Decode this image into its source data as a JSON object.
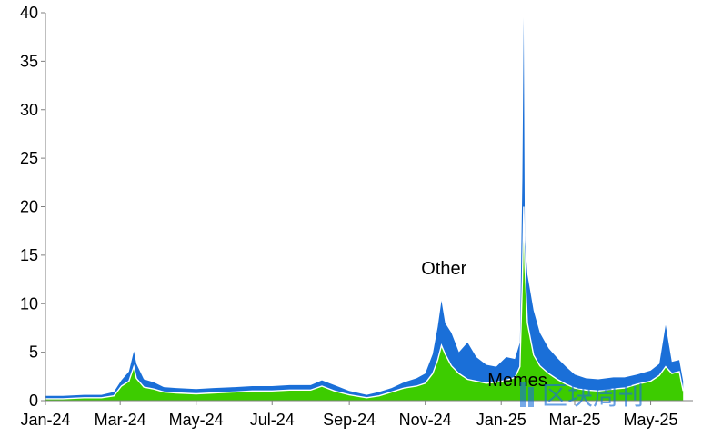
{
  "chart_data": {
    "type": "area",
    "stacked": true,
    "title": "",
    "xlabel": "",
    "ylabel": "",
    "ylim": [
      0,
      40
    ],
    "yticks": [
      0,
      5,
      10,
      15,
      20,
      25,
      30,
      35,
      40
    ],
    "xlim": [
      "2024-01-01",
      "2025-06-01"
    ],
    "xticks": [
      {
        "date": "2024-01-01",
        "label": "Jan-24"
      },
      {
        "date": "2024-03-01",
        "label": "Mar-24"
      },
      {
        "date": "2024-05-01",
        "label": "May-24"
      },
      {
        "date": "2024-07-01",
        "label": "Jul-24"
      },
      {
        "date": "2024-09-01",
        "label": "Sep-24"
      },
      {
        "date": "2024-11-01",
        "label": "Nov-24"
      },
      {
        "date": "2025-01-01",
        "label": "Jan-25"
      },
      {
        "date": "2025-03-01",
        "label": "Mar-25"
      },
      {
        "date": "2025-05-01",
        "label": "May-25"
      }
    ],
    "grid": false,
    "legend": "none",
    "series": [
      {
        "name": "Memes",
        "color": "#3dcc00",
        "points": [
          [
            "2024-01-01",
            0.2
          ],
          [
            "2024-01-15",
            0.2
          ],
          [
            "2024-02-01",
            0.3
          ],
          [
            "2024-02-15",
            0.3
          ],
          [
            "2024-02-25",
            0.5
          ],
          [
            "2024-03-02",
            1.5
          ],
          [
            "2024-03-08",
            2.0
          ],
          [
            "2024-03-12",
            3.5
          ],
          [
            "2024-03-14",
            2.3
          ],
          [
            "2024-03-20",
            1.4
          ],
          [
            "2024-03-28",
            1.2
          ],
          [
            "2024-04-05",
            0.9
          ],
          [
            "2024-04-15",
            0.8
          ],
          [
            "2024-05-01",
            0.7
          ],
          [
            "2024-05-15",
            0.8
          ],
          [
            "2024-06-01",
            0.9
          ],
          [
            "2024-06-15",
            1.0
          ],
          [
            "2024-07-01",
            1.0
          ],
          [
            "2024-07-15",
            1.1
          ],
          [
            "2024-08-01",
            1.1
          ],
          [
            "2024-08-10",
            1.5
          ],
          [
            "2024-08-20",
            1.0
          ],
          [
            "2024-09-01",
            0.6
          ],
          [
            "2024-09-15",
            0.3
          ],
          [
            "2024-09-25",
            0.5
          ],
          [
            "2024-10-05",
            0.9
          ],
          [
            "2024-10-15",
            1.3
          ],
          [
            "2024-10-25",
            1.5
          ],
          [
            "2024-11-01",
            1.8
          ],
          [
            "2024-11-07",
            2.8
          ],
          [
            "2024-11-11",
            4.2
          ],
          [
            "2024-11-14",
            5.7
          ],
          [
            "2024-11-17",
            4.8
          ],
          [
            "2024-11-22",
            3.6
          ],
          [
            "2024-11-28",
            2.8
          ],
          [
            "2024-12-05",
            2.2
          ],
          [
            "2024-12-12",
            2.0
          ],
          [
            "2024-12-20",
            1.8
          ],
          [
            "2024-12-28",
            1.9
          ],
          [
            "2025-01-05",
            2.1
          ],
          [
            "2025-01-12",
            2.4
          ],
          [
            "2025-01-16",
            3.5
          ],
          [
            "2025-01-18",
            12.5
          ],
          [
            "2025-01-19",
            20.0
          ],
          [
            "2025-01-20",
            14.0
          ],
          [
            "2025-01-22",
            8.0
          ],
          [
            "2025-01-27",
            4.7
          ],
          [
            "2025-02-01",
            3.6
          ],
          [
            "2025-02-08",
            2.8
          ],
          [
            "2025-02-15",
            2.2
          ],
          [
            "2025-02-22",
            1.7
          ],
          [
            "2025-03-01",
            1.3
          ],
          [
            "2025-03-10",
            1.1
          ],
          [
            "2025-03-20",
            1.0
          ],
          [
            "2025-04-01",
            1.2
          ],
          [
            "2025-04-10",
            1.3
          ],
          [
            "2025-04-20",
            1.7
          ],
          [
            "2025-05-01",
            2.0
          ],
          [
            "2025-05-08",
            2.6
          ],
          [
            "2025-05-13",
            3.5
          ],
          [
            "2025-05-18",
            2.8
          ],
          [
            "2025-05-24",
            3.0
          ],
          [
            "2025-05-27",
            1.0
          ]
        ]
      },
      {
        "name": "Other",
        "color": "#1a6fd8",
        "points": [
          [
            "2024-01-01",
            0.3
          ],
          [
            "2024-01-15",
            0.3
          ],
          [
            "2024-02-01",
            0.3
          ],
          [
            "2024-02-15",
            0.3
          ],
          [
            "2024-02-25",
            0.4
          ],
          [
            "2024-03-02",
            0.6
          ],
          [
            "2024-03-08",
            1.0
          ],
          [
            "2024-03-12",
            1.6
          ],
          [
            "2024-03-14",
            1.5
          ],
          [
            "2024-03-20",
            0.8
          ],
          [
            "2024-03-28",
            0.7
          ],
          [
            "2024-04-05",
            0.5
          ],
          [
            "2024-04-15",
            0.5
          ],
          [
            "2024-05-01",
            0.5
          ],
          [
            "2024-05-15",
            0.5
          ],
          [
            "2024-06-01",
            0.5
          ],
          [
            "2024-06-15",
            0.5
          ],
          [
            "2024-07-01",
            0.5
          ],
          [
            "2024-07-15",
            0.5
          ],
          [
            "2024-08-01",
            0.5
          ],
          [
            "2024-08-10",
            0.6
          ],
          [
            "2024-08-20",
            0.6
          ],
          [
            "2024-09-01",
            0.4
          ],
          [
            "2024-09-15",
            0.3
          ],
          [
            "2024-09-25",
            0.4
          ],
          [
            "2024-10-05",
            0.4
          ],
          [
            "2024-10-15",
            0.6
          ],
          [
            "2024-10-25",
            0.8
          ],
          [
            "2024-11-01",
            1.0
          ],
          [
            "2024-11-07",
            2.0
          ],
          [
            "2024-11-11",
            3.4
          ],
          [
            "2024-11-14",
            4.6
          ],
          [
            "2024-11-17",
            3.2
          ],
          [
            "2024-11-22",
            3.4
          ],
          [
            "2024-11-28",
            2.2
          ],
          [
            "2024-12-05",
            3.8
          ],
          [
            "2024-12-12",
            2.5
          ],
          [
            "2024-12-20",
            1.9
          ],
          [
            "2024-12-28",
            1.6
          ],
          [
            "2025-01-05",
            2.4
          ],
          [
            "2025-01-12",
            1.9
          ],
          [
            "2025-01-16",
            2.5
          ],
          [
            "2025-01-18",
            10.5
          ],
          [
            "2025-01-19",
            19.5
          ],
          [
            "2025-01-20",
            3.0
          ],
          [
            "2025-01-22",
            5.0
          ],
          [
            "2025-01-27",
            4.6
          ],
          [
            "2025-02-01",
            3.4
          ],
          [
            "2025-02-08",
            2.6
          ],
          [
            "2025-02-15",
            2.2
          ],
          [
            "2025-02-22",
            1.8
          ],
          [
            "2025-03-01",
            1.4
          ],
          [
            "2025-03-10",
            1.2
          ],
          [
            "2025-03-20",
            1.2
          ],
          [
            "2025-04-01",
            1.2
          ],
          [
            "2025-04-10",
            1.1
          ],
          [
            "2025-04-20",
            1.0
          ],
          [
            "2025-05-01",
            1.1
          ],
          [
            "2025-05-08",
            1.2
          ],
          [
            "2025-05-13",
            4.3
          ],
          [
            "2025-05-18",
            1.2
          ],
          [
            "2025-05-24",
            1.2
          ],
          [
            "2025-05-27",
            1.0
          ]
        ]
      }
    ],
    "annotations": [
      {
        "text": "Other",
        "date": "2024-11-16",
        "y": 13
      },
      {
        "text": "Memes",
        "date": "2025-01-14",
        "y": 1.5
      }
    ]
  },
  "watermark": {
    "text": "区块周刊",
    "color": "#1a6fd8"
  }
}
